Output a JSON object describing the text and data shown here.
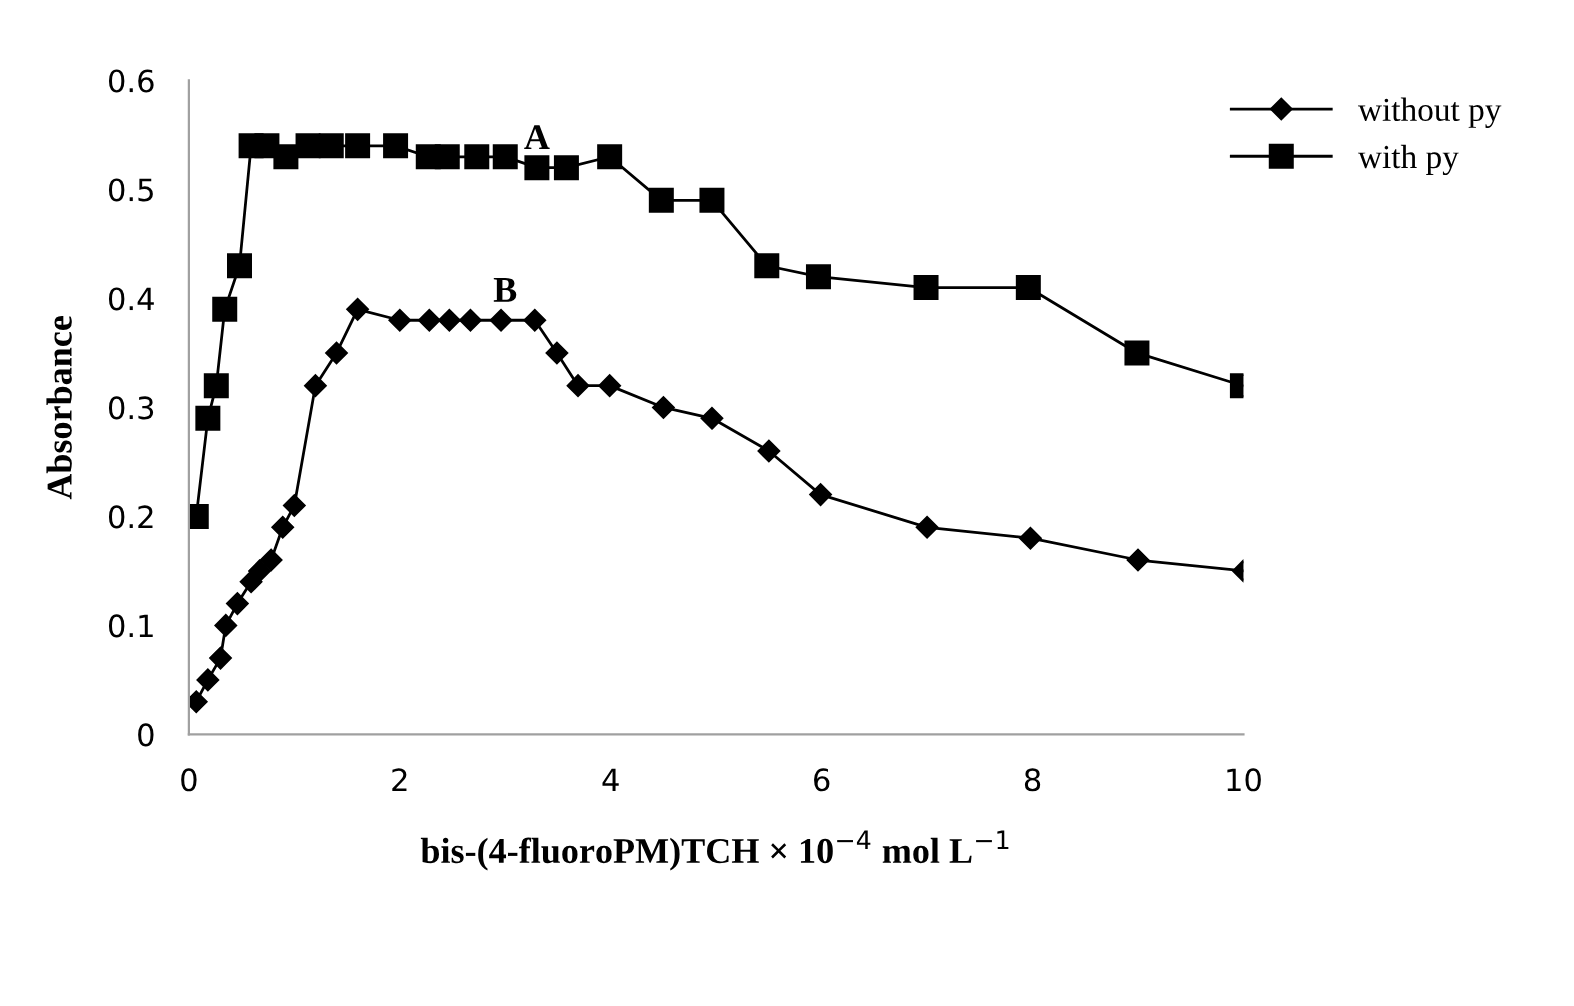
{
  "chart_data": {
    "type": "line",
    "xlabel": "bis-(4-fluoroPM)TCH × 10$^{−4}$ mol L$^{−1}$",
    "ylabel": "Absorbance",
    "xlim": [
      0,
      10
    ],
    "xticks": [
      0,
      2,
      4,
      6,
      8,
      10
    ],
    "ylim": [
      0,
      0.6
    ],
    "yticks": [
      0,
      0.1,
      0.2,
      0.3,
      0.4,
      0.5,
      0.6
    ],
    "grid": false,
    "legend": "top right",
    "series": [
      {
        "name": "without py",
        "color": "#000000",
        "marker": "diamond",
        "x": [
          0.07,
          0.18,
          0.3,
          0.35,
          0.46,
          0.59,
          0.67,
          0.78,
          0.89,
          1.0,
          1.2,
          1.4,
          1.6,
          2.0,
          2.28,
          2.47,
          2.67,
          2.96,
          3.28,
          3.49,
          3.69,
          3.99,
          4.5,
          4.96,
          5.5,
          5.99,
          7.0,
          7.98,
          9.0,
          10.0
        ],
        "values": [
          0.03,
          0.05,
          0.07,
          0.1,
          0.12,
          0.14,
          0.15,
          0.16,
          0.19,
          0.21,
          0.32,
          0.35,
          0.39,
          0.38,
          0.38,
          0.38,
          0.38,
          0.38,
          0.38,
          0.35,
          0.32,
          0.32,
          0.3,
          0.29,
          0.26,
          0.22,
          0.19,
          0.18,
          0.16,
          0.15
        ]
      },
      {
        "name": "with py",
        "color": "#000000",
        "marker": "square",
        "x": [
          0.07,
          0.18,
          0.26,
          0.34,
          0.48,
          0.59,
          0.74,
          0.92,
          1.13,
          1.35,
          1.6,
          1.96,
          2.27,
          2.45,
          2.73,
          3.0,
          3.3,
          3.58,
          3.99,
          4.48,
          4.96,
          5.48,
          5.97,
          6.99,
          7.96,
          8.99,
          9.99
        ],
        "values": [
          0.2,
          0.29,
          0.32,
          0.39,
          0.43,
          0.54,
          0.54,
          0.53,
          0.54,
          0.54,
          0.54,
          0.54,
          0.53,
          0.53,
          0.53,
          0.53,
          0.52,
          0.52,
          0.53,
          0.49,
          0.49,
          0.43,
          0.42,
          0.41,
          0.41,
          0.35,
          0.32
        ]
      }
    ],
    "annotations": [
      {
        "text": "A",
        "x": 3.3,
        "y": 0.53
      },
      {
        "text": "B",
        "x": 3.0,
        "y": 0.39
      }
    ]
  }
}
